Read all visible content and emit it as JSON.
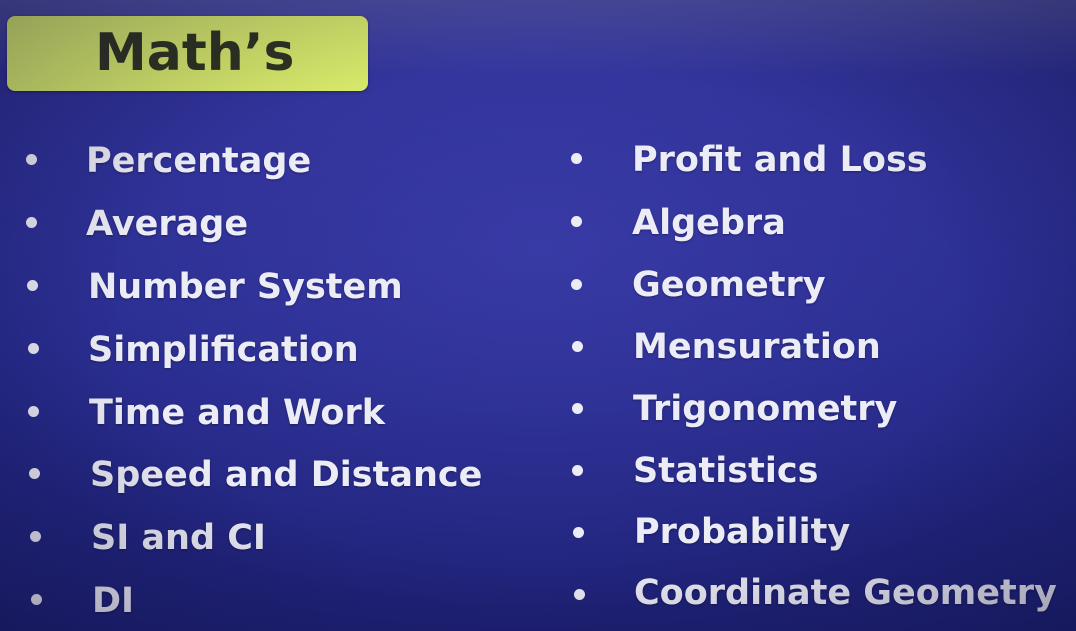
{
  "title": "Math’s",
  "left_items": [
    "Percentage",
    "Average",
    "Number System",
    "Simplification",
    "Time and Work",
    "Speed and Distance",
    "SI and CI",
    "DI"
  ],
  "right_items": [
    "Profit and Loss",
    "Algebra",
    "Geometry",
    "Mensuration",
    "Trigonometry",
    "Statistics",
    "Probability",
    "Coordinate Geometry"
  ],
  "colors": {
    "background": "#262a8a",
    "title_box": "#d8ea6a",
    "title_text": "#2f3420",
    "item_text": "#ececf6"
  }
}
